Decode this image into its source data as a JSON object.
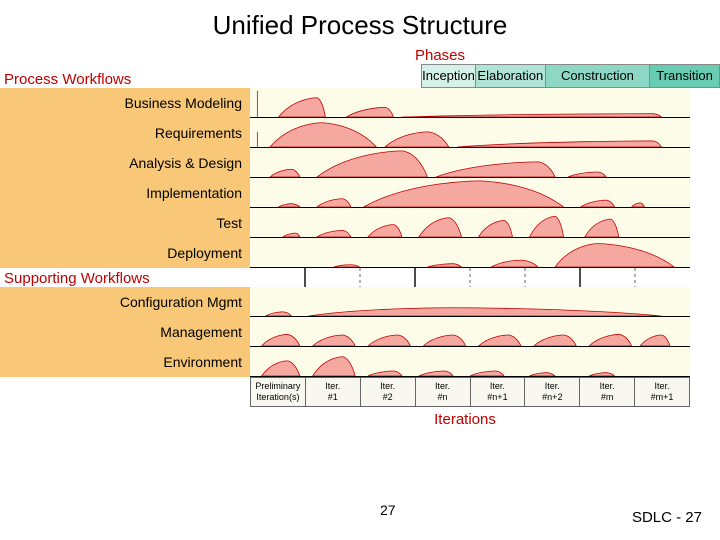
{
  "title": "Unified Process Structure",
  "phases_label": "Phases",
  "iterations_label": "Iterations",
  "page_num": "27",
  "footer": "SDLC - 27",
  "process_label": "Process Workflows",
  "supporting_label": "Supporting Workflows",
  "phase_header_bg": [
    "#d4f0e8",
    "#b0e4d6",
    "#8cd8c4",
    "#68ccb2"
  ],
  "phases": [
    {
      "name": "Inception",
      "span": 1
    },
    {
      "name": "Elaboration",
      "span": 2
    },
    {
      "name": "Construction",
      "span": 3
    },
    {
      "name": "Transition",
      "span": 2
    }
  ],
  "iterations": [
    "Preliminary\nIteration(s)",
    "Iter.\n#1",
    "Iter.\n#2",
    "Iter.\n#n",
    "Iter.\n#n+1",
    "Iter.\n#n+2",
    "Iter.\n#m",
    "Iter.\n#m+1"
  ],
  "hump_fill": "#f4a8a0",
  "hump_stroke": "#c00000",
  "label_block_bg": "#f8c878",
  "row_bg": "#fcfce8",
  "workflows": [
    {
      "label": "Business Modeling",
      "group": "process",
      "humps": [
        [
          0,
          0.95,
          0,
          0
        ],
        [
          0.05,
          0.7,
          0.16,
          0.14
        ],
        [
          0.21,
          0.35,
          0.32,
          0.3
        ],
        [
          0.34,
          0.12,
          0.95,
          0.93
        ]
      ]
    },
    {
      "label": "Requirements",
      "group": "process",
      "humps": [
        [
          0,
          0.55,
          0,
          0
        ],
        [
          0.03,
          0.88,
          0.28,
          0.15
        ],
        [
          0.3,
          0.55,
          0.45,
          0.4
        ],
        [
          0.47,
          0.22,
          0.95,
          0.93
        ]
      ]
    },
    {
      "label": "Analysis & Design",
      "group": "process",
      "humps": [
        [
          0.03,
          0.28,
          0.1,
          0.08
        ],
        [
          0.14,
          0.95,
          0.4,
          0.34
        ],
        [
          0.42,
          0.55,
          0.7,
          0.66
        ],
        [
          0.73,
          0.18,
          0.82,
          0.8
        ]
      ]
    },
    {
      "label": "Implementation",
      "group": "process",
      "humps": [
        [
          0.05,
          0.12,
          0.1,
          0.08
        ],
        [
          0.14,
          0.3,
          0.22,
          0.2
        ],
        [
          0.25,
          0.95,
          0.72,
          0.52
        ],
        [
          0.76,
          0.25,
          0.84,
          0.82
        ],
        [
          0.88,
          0.15,
          0.91,
          0.9
        ]
      ]
    },
    {
      "label": "Test",
      "group": "process",
      "humps": [
        [
          0.06,
          0.14,
          0.1,
          0.09
        ],
        [
          0.14,
          0.24,
          0.22,
          0.2
        ],
        [
          0.26,
          0.45,
          0.34,
          0.32
        ],
        [
          0.38,
          0.7,
          0.48,
          0.45
        ],
        [
          0.52,
          0.6,
          0.6,
          0.58
        ],
        [
          0.64,
          0.75,
          0.72,
          0.7
        ],
        [
          0.77,
          0.65,
          0.85,
          0.83
        ]
      ]
    },
    {
      "label": "Deployment",
      "group": "process",
      "humps": [
        [
          0.18,
          0.08,
          0.24,
          0.22
        ],
        [
          0.4,
          0.12,
          0.48,
          0.46
        ],
        [
          0.55,
          0.25,
          0.66,
          0.62
        ],
        [
          0.7,
          0.85,
          0.98,
          0.8
        ]
      ]
    },
    {
      "label": "Configuration Mgmt",
      "group": "supporting",
      "humps": [
        [
          0.02,
          0.15,
          0.08,
          0.06
        ],
        [
          0.12,
          0.3,
          0.95,
          0.45
        ]
      ]
    },
    {
      "label": "Management",
      "group": "supporting",
      "humps": [
        [
          0.01,
          0.42,
          0.1,
          0.07
        ],
        [
          0.13,
          0.4,
          0.23,
          0.2
        ],
        [
          0.26,
          0.4,
          0.36,
          0.33
        ],
        [
          0.39,
          0.4,
          0.49,
          0.46
        ],
        [
          0.52,
          0.4,
          0.62,
          0.59
        ],
        [
          0.65,
          0.4,
          0.75,
          0.72
        ],
        [
          0.78,
          0.42,
          0.88,
          0.85
        ],
        [
          0.9,
          0.4,
          0.97,
          0.95
        ]
      ]
    },
    {
      "label": "Environment",
      "group": "supporting",
      "humps": [
        [
          0.01,
          0.55,
          0.1,
          0.07
        ],
        [
          0.13,
          0.7,
          0.23,
          0.2
        ],
        [
          0.26,
          0.18,
          0.34,
          0.32
        ],
        [
          0.38,
          0.18,
          0.46,
          0.44
        ],
        [
          0.5,
          0.18,
          0.58,
          0.56
        ],
        [
          0.64,
          0.12,
          0.7,
          0.68
        ],
        [
          0.78,
          0.12,
          0.84,
          0.82
        ]
      ]
    }
  ]
}
